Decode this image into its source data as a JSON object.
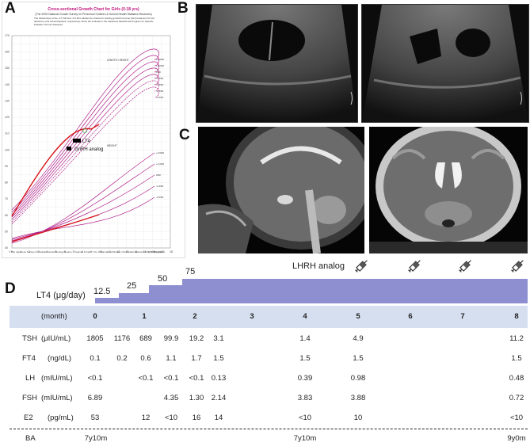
{
  "panels": {
    "a": "A",
    "b": "B",
    "c": "C",
    "d": "D"
  },
  "growth_chart": {
    "title": "Cross-sectional Growth Chart for Girls (0-18 yrs)",
    "subtitle": "(The 2000 National Growth Survey on Preschool Children & School Health Statistics Research)",
    "note": "The dotted-lines of the -2.5 SD and -3.0 SD indicate the criteria for starting growth hormone (GH) treatment for GH deficiency and achondroplasia, respectively, which are included in the Japanese Medical Aid Program for Specific Pediatric Chronic Diseases.",
    "length_label": "LENGTH / HEIGHT",
    "weight_label": "WEIGHT",
    "sd_labels_height": [
      "+2.0SD",
      "+1.0SD",
      "0SD",
      "-1.0SD",
      "-2.0SD",
      "-2.5SD",
      "-3.0SD"
    ],
    "sd_labels_weight": [
      "+2.0SD",
      "+1.0SD",
      "0SD",
      "-1.0SD",
      "-2.0SD"
    ],
    "y_ticks_left": [
      "170",
      "160",
      "150",
      "140",
      "130",
      "120",
      "110",
      "100",
      "90",
      "80",
      "70",
      "60",
      "50",
      "40"
    ],
    "x_ticks": [
      "0",
      "1",
      "2",
      "3",
      "4",
      "5",
      "6",
      "7",
      "8",
      "9",
      "10",
      "11",
      "12",
      "13",
      "14",
      "15",
      "16",
      "17",
      "18"
    ],
    "x_unit": "(yrs AGE(years)",
    "legend": [
      {
        "label": "LT4"
      },
      {
        "label": "GnRH analog"
      }
    ],
    "footer": "© The Japanese Society for Pediatric Endocrinology    Source: T.Isojima, N.Kato, Y.Ito, S.Kanzaki, M.Murata: Clin Pediatr Endocrinol 25:71-76, 2016",
    "colors": {
      "curve": "#b0208a",
      "patient": "#d8141a",
      "title": "#c0137c"
    }
  },
  "treatment": {
    "lhrh_label": "LHRH analog",
    "syringe_icon": "syringe-icon",
    "lt4_label": "LT4 (μg/day)",
    "lt4_doses": [
      "12.5",
      "25",
      "50",
      "75"
    ]
  },
  "table": {
    "month_label": "(month)",
    "months": [
      "0",
      "1",
      "2",
      "3",
      "4",
      "5",
      "6",
      "7",
      "8"
    ],
    "rows": [
      {
        "name": "TSH",
        "unit": "(μIU/mL)",
        "values": [
          "1805",
          "1176",
          "689",
          "99.9",
          "19.2",
          "3.1",
          "1.4",
          "4.9",
          "11.2"
        ]
      },
      {
        "name": "FT4",
        "unit": "(ng/dL)",
        "values": [
          "0.1",
          "0.2",
          "0.6",
          "1.1",
          "1.7",
          "1.5",
          "1.5",
          "1.5",
          "1.5"
        ]
      },
      {
        "name": "LH",
        "unit": "(mIU/mL)",
        "values": [
          "<0.1",
          "<0.1",
          "<0.1",
          "<0.1",
          "0.13",
          "0.39",
          "0.98",
          "0.48"
        ]
      },
      {
        "name": "FSH",
        "unit": "(mIU/mL)",
        "values": [
          "6.89",
          "4.35",
          "1.30",
          "2.14",
          "3.83",
          "3.88",
          "0.72"
        ]
      },
      {
        "name": "E2",
        "unit": "(pg/mL)",
        "values": [
          "53",
          "12",
          "<10",
          "16",
          "14",
          "<10",
          "10",
          "<10"
        ]
      }
    ],
    "ba_label": "BA",
    "ba_values": [
      "7y10m",
      "7y10m",
      "9y0m"
    ]
  }
}
